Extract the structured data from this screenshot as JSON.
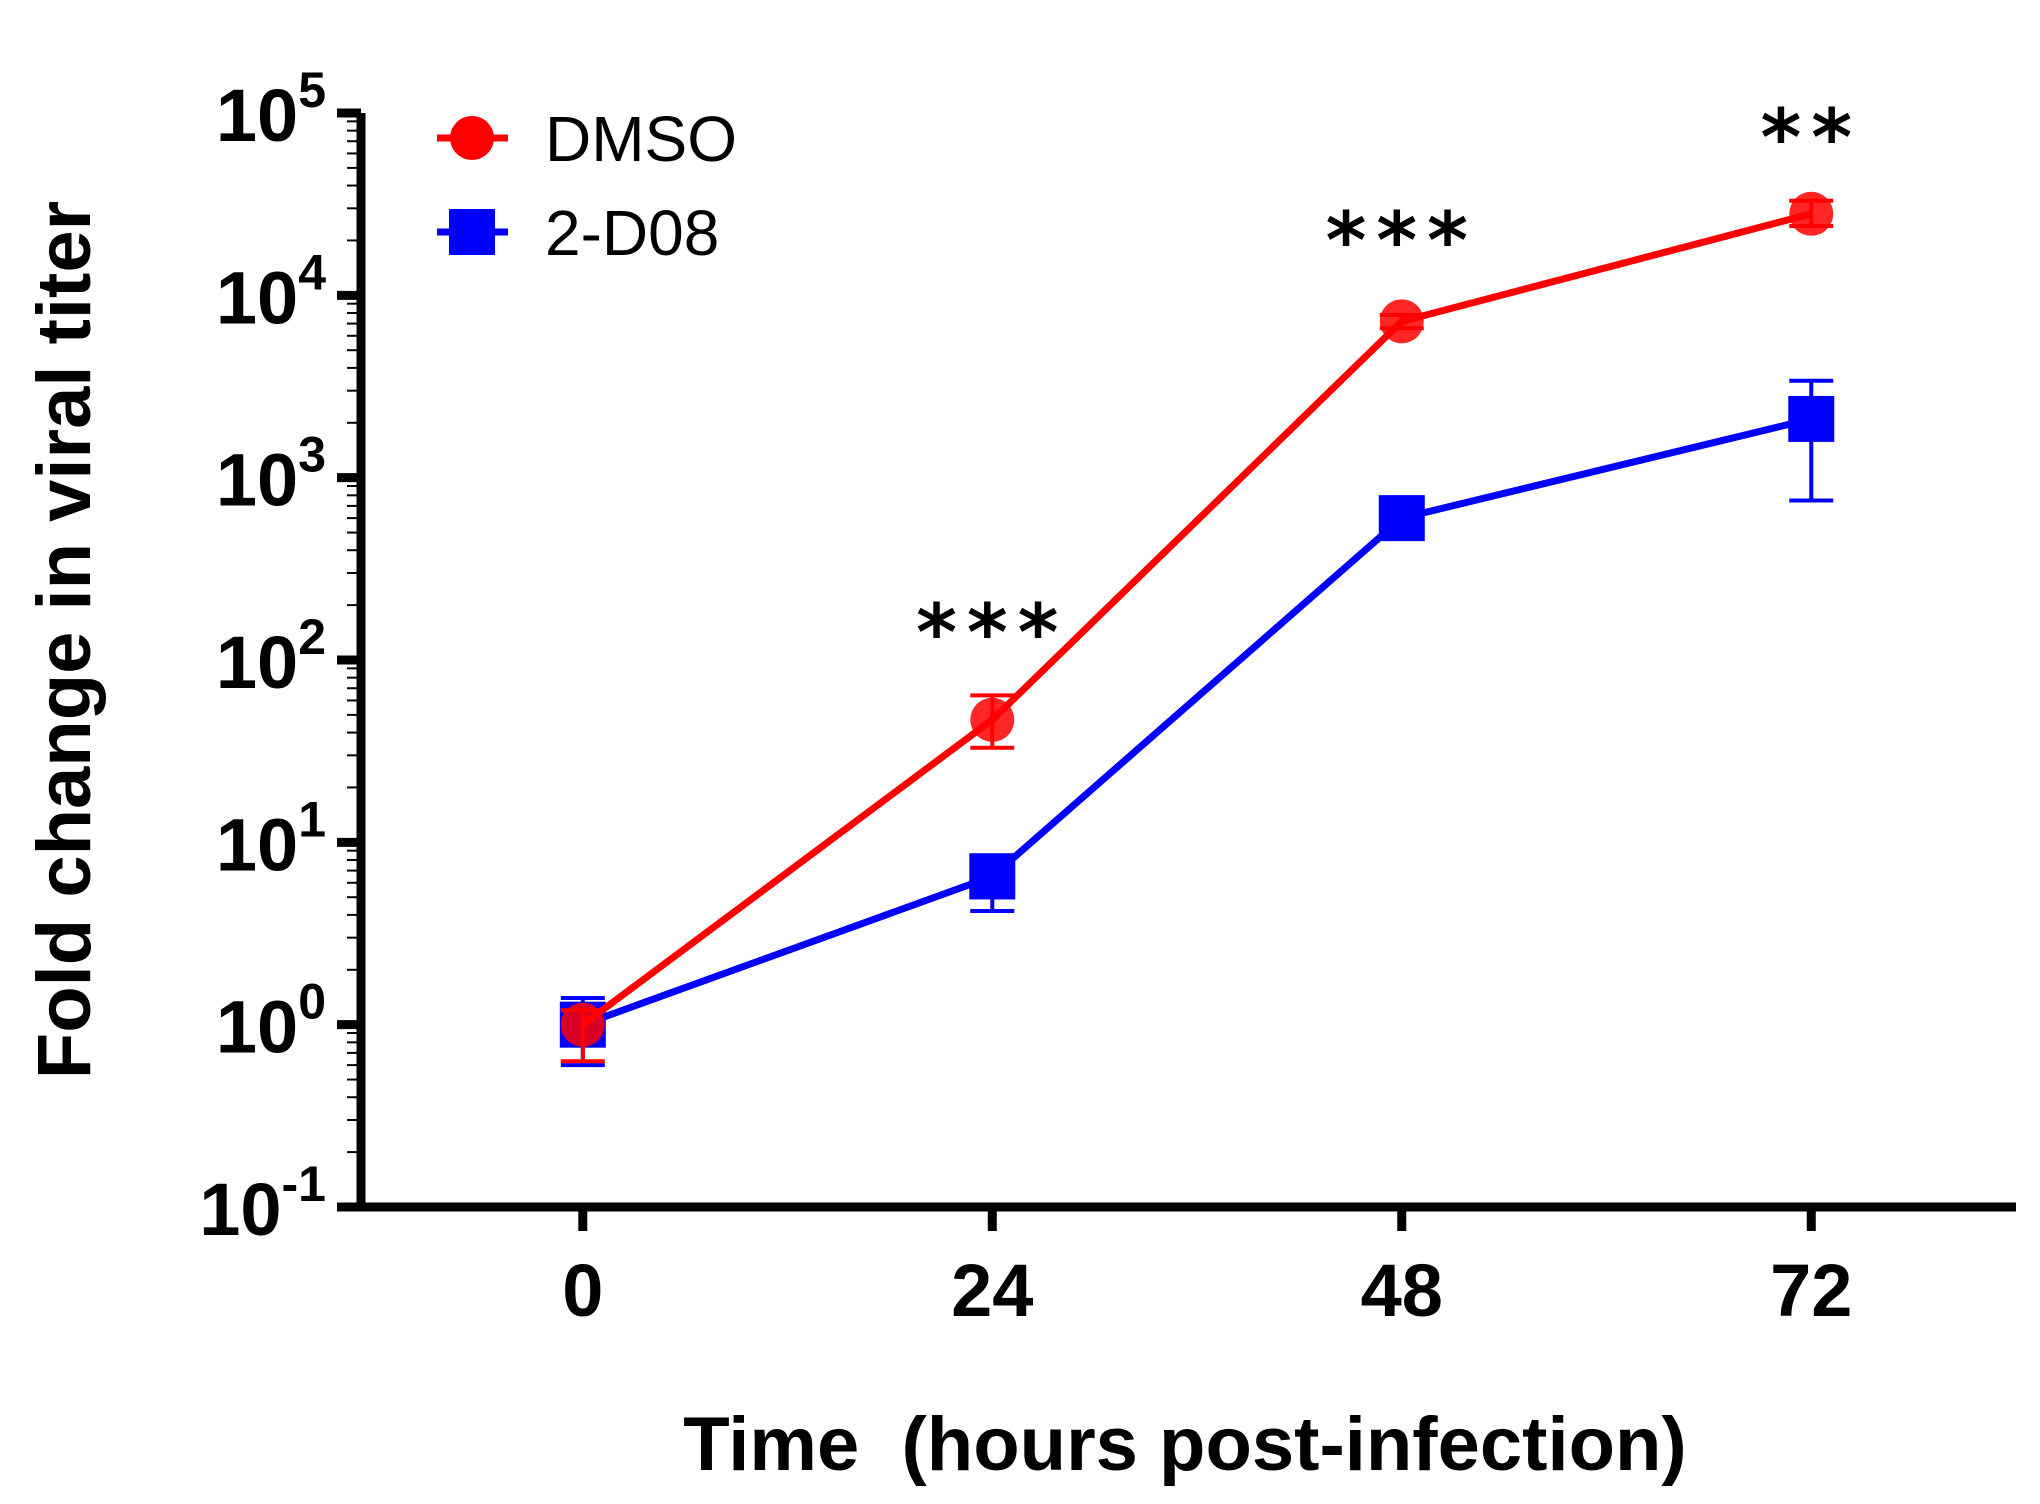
{
  "chart_data": {
    "type": "line",
    "title": "",
    "xlabel": "Time  (hours post-infection)",
    "ylabel": "Fold change in viral titer",
    "x": [
      0,
      24,
      48,
      72
    ],
    "x_ticks": [
      "0",
      "24",
      "48",
      "72"
    ],
    "xlim": [
      -13,
      84
    ],
    "yscale": "log",
    "ylim": [
      0.1,
      100000
    ],
    "y_ticks": [
      {
        "base": "10",
        "exp": "-1",
        "value": 0.1
      },
      {
        "base": "10",
        "exp": "0",
        "value": 1
      },
      {
        "base": "10",
        "exp": "1",
        "value": 10
      },
      {
        "base": "10",
        "exp": "2",
        "value": 100
      },
      {
        "base": "10",
        "exp": "3",
        "value": 1000
      },
      {
        "base": "10",
        "exp": "4",
        "value": 10000
      },
      {
        "base": "10",
        "exp": "5",
        "value": 100000
      }
    ],
    "series": [
      {
        "name": "DMSO",
        "color": "#ff0000",
        "marker": "circle",
        "values": [
          1.0,
          47,
          7200,
          28000
        ],
        "err_low": [
          0.63,
          33,
          6600,
          24000
        ],
        "err_high": [
          1.2,
          64,
          7800,
          33000
        ]
      },
      {
        "name": "2-D08",
        "color": "#0000ff",
        "marker": "square",
        "values": [
          1.0,
          6.5,
          600,
          2100
        ],
        "err_low": [
          0.6,
          4.2,
          600,
          750
        ],
        "err_high": [
          1.4,
          8.5,
          600,
          3400
        ]
      }
    ],
    "annotations": [
      {
        "x": 24,
        "text": "***"
      },
      {
        "x": 48,
        "text": "***"
      },
      {
        "x": 72,
        "text": "**"
      }
    ],
    "legend": {
      "position": "top-left",
      "entries": [
        "DMSO",
        "2-D08"
      ]
    },
    "grid": false
  }
}
